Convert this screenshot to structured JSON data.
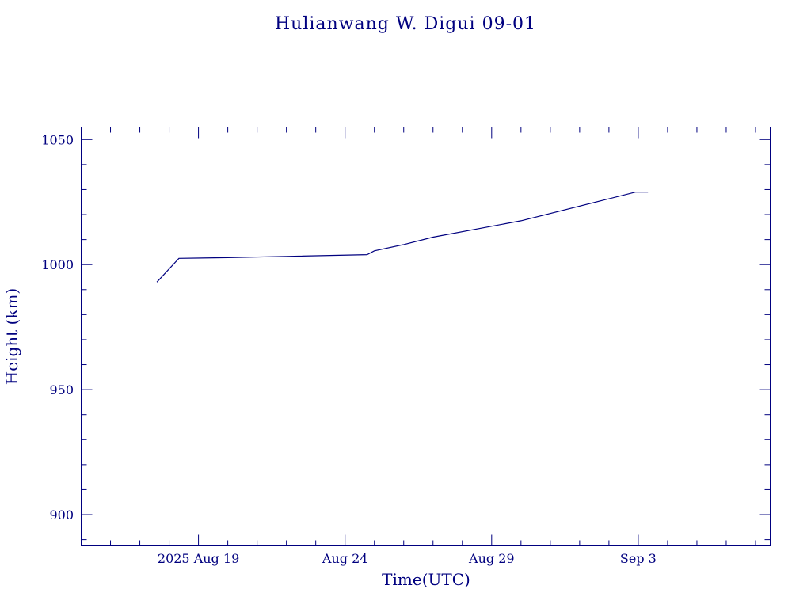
{
  "chart_data": {
    "type": "line",
    "title": "Hulianwang W. Digui 09-01",
    "xlabel": "Time(UTC)",
    "ylabel": "Height (km)",
    "xlim": [
      "2025-08-15T00:00",
      "2025-09-07T12:00"
    ],
    "ylim": [
      887.5,
      1055
    ],
    "x_ticks": [
      {
        "date": "2025-08-19T00:00",
        "label": "2025 Aug 19"
      },
      {
        "date": "2025-08-24T00:00",
        "label": "Aug 24"
      },
      {
        "date": "2025-08-29T00:00",
        "label": "Aug 29"
      },
      {
        "date": "2025-09-03T00:00",
        "label": "Sep  3"
      }
    ],
    "x_minor_ticks": [
      "2025-08-16T00:00",
      "2025-08-17T00:00",
      "2025-08-18T00:00",
      "2025-08-20T00:00",
      "2025-08-21T00:00",
      "2025-08-22T00:00",
      "2025-08-23T00:00",
      "2025-08-25T00:00",
      "2025-08-26T00:00",
      "2025-08-27T00:00",
      "2025-08-28T00:00",
      "2025-08-30T00:00",
      "2025-08-31T00:00",
      "2025-09-01T00:00",
      "2025-09-02T00:00",
      "2025-09-04T00:00",
      "2025-09-05T00:00",
      "2025-09-06T00:00",
      "2025-09-07T00:00"
    ],
    "y_ticks": [
      900,
      950,
      1000,
      1050
    ],
    "y_minor_ticks": [
      890,
      910,
      920,
      930,
      940,
      960,
      970,
      980,
      990,
      1010,
      1020,
      1030,
      1040
    ],
    "series": [
      {
        "color": "#00007f",
        "points": [
          {
            "x": "2025-08-17T14:00",
            "y": 993
          },
          {
            "x": "2025-08-18T08:00",
            "y": 1002.5
          },
          {
            "x": "2025-08-20T00:00",
            "y": 1002.8
          },
          {
            "x": "2025-08-22T00:00",
            "y": 1003.3
          },
          {
            "x": "2025-08-24T18:00",
            "y": 1004
          },
          {
            "x": "2025-08-25T00:00",
            "y": 1005.5
          },
          {
            "x": "2025-08-26T00:00",
            "y": 1008
          },
          {
            "x": "2025-08-27T00:00",
            "y": 1011
          },
          {
            "x": "2025-08-30T00:00",
            "y": 1017.5
          },
          {
            "x": "2025-09-02T22:00",
            "y": 1029
          },
          {
            "x": "2025-09-03T08:00",
            "y": 1029
          }
        ]
      }
    ],
    "grid": false,
    "legend": "none"
  }
}
